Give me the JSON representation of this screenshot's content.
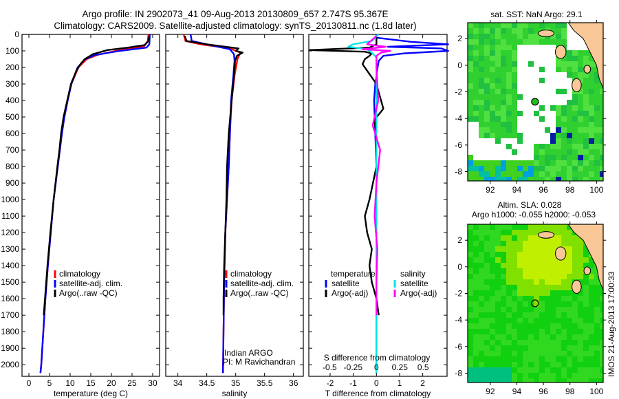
{
  "title": {
    "line1": "Argo profile: IN 2902073_41 09-Aug-2013 20130809_657 2.747S 95.367E",
    "line2": "Climatology: CARS2009. Satellite-adjusted climatology: synTS_20130811.nc (1.8d later)"
  },
  "colors": {
    "climatology": "#ff0000",
    "satellite": "#0000ff",
    "argo": "#000000",
    "sal_sat": "#00e5e5",
    "sal_argo": "#ff00ff"
  },
  "chart_data": [
    {
      "type": "line",
      "name": "temperature",
      "xlabel": "temperature (deg C)",
      "ylabel": "",
      "xlim": [
        -1.67,
        31.67
      ],
      "ylim": [
        2070,
        0
      ],
      "xticks": [
        0,
        5,
        10,
        15,
        20,
        25,
        30
      ],
      "xtick_labels": [
        "0",
        "5",
        "10",
        "15",
        "20",
        "25",
        "30"
      ],
      "yticks": [
        0,
        100,
        200,
        300,
        400,
        500,
        600,
        700,
        800,
        900,
        1000,
        1100,
        1200,
        1300,
        1400,
        1500,
        1600,
        1700,
        1800,
        1900,
        2000
      ],
      "yticklabels": [
        "0",
        "100",
        "200",
        "300",
        "400",
        "500",
        "600",
        "700",
        "800",
        "900",
        "1000",
        "1100",
        "1200",
        "1300",
        "1400",
        "1500",
        "1600",
        "1700",
        "1800",
        "1900",
        "2000"
      ],
      "legend": [
        "climatology",
        "satellite-adj. clim.",
        "Argo(..raw -QC)"
      ],
      "series": [
        {
          "name": "climatology",
          "color": "#ff0000",
          "depth": [
            0,
            40,
            70,
            85,
            100,
            125,
            150,
            200,
            300,
            400,
            500,
            600,
            700,
            800,
            1000,
            1200,
            1400,
            1600,
            1800,
            2000,
            2050
          ],
          "values": [
            29,
            28.8,
            28,
            25,
            21,
            16.5,
            14,
            12,
            10.3,
            9.4,
            8.6,
            8,
            7.5,
            7,
            6,
            5.3,
            4.6,
            4,
            3.5,
            3,
            2.8
          ]
        },
        {
          "name": "satellite-adj. clim.",
          "color": "#0000ff",
          "depth": [
            0,
            60,
            80,
            100,
            125,
            150,
            200,
            300,
            400,
            500,
            600,
            700,
            800,
            1000,
            1200,
            1400,
            1600,
            1800,
            2000,
            2050
          ],
          "values": [
            29.3,
            29.2,
            28.5,
            22,
            16,
            13.6,
            11.8,
            10.3,
            9.4,
            8.6,
            8,
            7.5,
            7,
            6,
            5.3,
            4.6,
            4,
            3.5,
            3,
            2.8
          ]
        },
        {
          "name": "Argo(..raw -QC)",
          "color": "#000000",
          "depth": [
            10,
            40,
            65,
            80,
            95,
            120,
            150,
            180,
            220,
            300,
            400,
            500,
            600,
            700,
            800,
            1000,
            1200,
            1400,
            1600,
            1700
          ],
          "values": [
            29.1,
            29,
            28,
            24,
            19,
            15.5,
            13.5,
            12.5,
            11.5,
            10.2,
            9.3,
            8.4,
            7.8,
            7.4,
            6.9,
            6,
            5.2,
            4.5,
            3.9,
            3.6
          ]
        }
      ]
    },
    {
      "type": "line",
      "name": "salinity",
      "xlabel": "salinity",
      "xlim": [
        33.79,
        36.17
      ],
      "ylim": [
        2070,
        0
      ],
      "xticks": [
        34,
        34.5,
        35,
        35.5,
        36
      ],
      "xtick_labels": [
        "34",
        "34.5",
        "35",
        "35.5",
        "36"
      ],
      "legend": [
        "climatology",
        "satellite-adj. clim.",
        "Argo(..raw -QC)"
      ],
      "annotation": [
        "Indian ARGO",
        "PI: M Ravichandran"
      ],
      "series": [
        {
          "name": "climatology",
          "color": "#ff0000",
          "depth": [
            0,
            40,
            60,
            85,
            110,
            150,
            250,
            400,
            600,
            800,
            1000,
            1200,
            1500,
            1800,
            2050
          ],
          "values": [
            34.1,
            34.13,
            34.4,
            34.9,
            35.08,
            35.03,
            34.98,
            34.93,
            34.9,
            34.88,
            34.85,
            34.82,
            34.8,
            34.79,
            34.78
          ]
        },
        {
          "name": "satellite-adj. clim.",
          "color": "#0000ff",
          "depth": [
            0,
            40,
            60,
            90,
            120,
            160,
            250,
            400,
            600,
            800,
            1000,
            1200,
            1500,
            1800,
            2050
          ],
          "values": [
            34.22,
            34.24,
            34.5,
            34.9,
            34.97,
            34.98,
            34.96,
            34.92,
            34.9,
            34.88,
            34.85,
            34.82,
            34.8,
            34.79,
            34.78
          ]
        },
        {
          "name": "Argo(..raw -QC)",
          "color": "#000000",
          "depth": [
            10,
            40,
            60,
            85,
            100,
            110,
            130,
            160,
            250,
            400,
            600,
            800,
            1000,
            1200,
            1400,
            1600,
            1700
          ],
          "values": [
            34.12,
            34.15,
            34.5,
            35.05,
            35.0,
            35.12,
            35.02,
            34.99,
            34.97,
            34.93,
            34.88,
            34.85,
            34.84,
            34.82,
            34.8,
            34.79,
            34.79
          ]
        }
      ]
    },
    {
      "type": "line",
      "name": "differences",
      "xlabel": "T difference from climatology",
      "xlabel2": "S difference from climatology",
      "xlim": [
        -2.92,
        3.05
      ],
      "ylim": [
        2070,
        0
      ],
      "xticks": [
        -2,
        -1,
        0,
        1,
        2
      ],
      "xtick_labels": [
        "-2",
        "-1",
        "0",
        "1",
        "2"
      ],
      "s_xticks": [
        -0.5,
        -0.25,
        0,
        0.25,
        0.5
      ],
      "s_xtick_labels": [
        "-0.5",
        "-0.25",
        "0",
        "0.25",
        "0.5"
      ],
      "legend": {
        "temperature_title": "temperature",
        "salinity_title": "salinity",
        "items": [
          "satellite",
          "Argo(-adj)",
          "satellite",
          "Argo(-adj)"
        ]
      },
      "series": [
        {
          "name": "T satellite",
          "unit": "T",
          "color": "#0000ff",
          "depth": [
            0,
            20,
            45,
            60,
            75,
            85,
            100,
            115,
            130,
            160,
            200,
            300,
            400,
            600,
            800,
            1000,
            1400,
            1800,
            2050
          ],
          "values": [
            0,
            0,
            1.5,
            3.1,
            0.5,
            2.8,
            3.1,
            1.2,
            0.3,
            0.1,
            0.05,
            -0.05,
            -0.1,
            -0.05,
            0,
            0,
            0,
            0,
            0
          ]
        },
        {
          "name": "T Argo(-adj)",
          "unit": "T",
          "color": "#000000",
          "depth": [
            10,
            60,
            80,
            95,
            105,
            115,
            130,
            150,
            180,
            220,
            260,
            300,
            400,
            450,
            520,
            600,
            800,
            1000,
            1100,
            1200,
            1300,
            1400,
            1500,
            1600,
            1700
          ],
          "values": [
            0,
            0,
            -0.3,
            -2.9,
            -0.5,
            -0.2,
            -0.3,
            -0.5,
            -0.6,
            -0.4,
            -0.2,
            0,
            0.2,
            0.3,
            -0.1,
            0,
            0,
            -0.3,
            -0.5,
            -0.4,
            -0.2,
            -0.3,
            -0.2,
            0,
            0.1
          ]
        },
        {
          "name": "S satellite",
          "unit": "S",
          "color": "#00e5e5",
          "depth": [
            0,
            40,
            60,
            75,
            90,
            110,
            140,
            200,
            400,
            800,
            1200,
            1600,
            2050
          ],
          "values": [
            0.02,
            -0.05,
            -0.25,
            -0.3,
            -0.1,
            -0.05,
            0,
            0,
            0,
            0,
            0,
            0,
            0
          ]
        },
        {
          "name": "S Argo(-adj)",
          "unit": "S",
          "color": "#ff00ff",
          "depth": [
            10,
            60,
            75,
            90,
            100,
            110,
            130,
            200,
            400,
            550,
            700,
            900,
            1100,
            1300,
            1500,
            1700
          ],
          "values": [
            0,
            -0.1,
            0.1,
            -0.15,
            0.15,
            0.05,
            0,
            0,
            0.02,
            -0.04,
            0.04,
            0,
            -0.02,
            0.01,
            0,
            0
          ]
        }
      ]
    },
    {
      "type": "heatmap",
      "name": "sst-map",
      "title": "sat. SST: NaN Argo: 29.1",
      "xlim": [
        90.3,
        100.5
      ],
      "ylim": [
        -8.7,
        3.2
      ],
      "xticks": [
        92,
        94,
        96,
        98,
        100
      ],
      "xtick_labels": [
        "92",
        "94",
        "96",
        "98",
        "100"
      ],
      "yticks": [
        2,
        0,
        -2,
        -4,
        -6,
        -8
      ],
      "ytick_labels": [
        "2",
        "0",
        "-2",
        "-4",
        "-6",
        "-8"
      ],
      "argo_position": {
        "lon": 95.367,
        "lat": -2.747
      }
    },
    {
      "type": "heatmap",
      "name": "sla-map",
      "title": "Altim. SLA: 0.028",
      "subtitle": "Argo h1000: -0.055 h2000: -0.053",
      "xlim": [
        90.3,
        100.5
      ],
      "ylim": [
        -8.7,
        3.2
      ],
      "xticks": [
        92,
        94,
        96,
        98,
        100
      ],
      "xtick_labels": [
        "92",
        "94",
        "96",
        "98",
        "100"
      ],
      "yticks": [
        2,
        0,
        -2,
        -4,
        -6,
        -8
      ],
      "ytick_labels": [
        "2",
        "0",
        "-2",
        "-4",
        "-6",
        "-8"
      ],
      "argo_position": {
        "lon": 95.367,
        "lat": -2.747
      }
    }
  ],
  "footer": {
    "stamp": "IMOS 21-Aug-2013 17:00:33"
  }
}
